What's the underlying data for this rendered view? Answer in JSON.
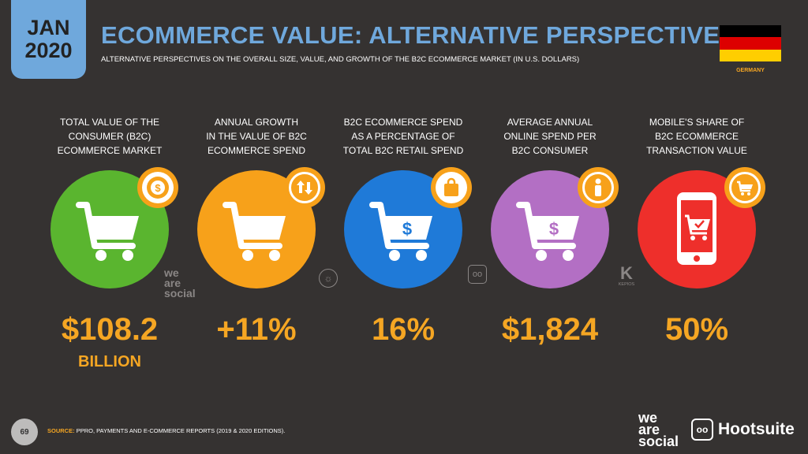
{
  "header": {
    "month": "JAN",
    "year": "2020",
    "title": "ECOMMERCE VALUE: ALTERNATIVE PERSPECTIVES",
    "subtitle": "ALTERNATIVE PERSPECTIVES ON THE OVERALL SIZE, VALUE, AND GROWTH OF THE B2C ECOMMERCE MARKET (IN U.S. DOLLARS)",
    "country": "GERMANY",
    "flag_colors": [
      "#000000",
      "#dd0000",
      "#ffce00"
    ]
  },
  "metrics": [
    {
      "label": "TOTAL VALUE OF THE\nCONSUMER (B2C)\nECOMMERCE MARKET",
      "value": "$108.2",
      "unit": "BILLION",
      "color": "#5ab52f",
      "icon": "dollar-coin-icon"
    },
    {
      "label": "ANNUAL GROWTH\nIN THE VALUE OF B2C\nECOMMERCE SPEND",
      "value": "+11%",
      "unit": "",
      "color": "#f7a11a",
      "icon": "up-down-arrows-icon"
    },
    {
      "label": "B2C ECOMMERCE SPEND\nAS A PERCENTAGE OF\nTOTAL B2C RETAIL SPEND",
      "value": "16%",
      "unit": "",
      "color": "#1f7ad8",
      "icon": "shopping-bag-icon"
    },
    {
      "label": "AVERAGE ANNUAL\nONLINE SPEND PER\nB2C CONSUMER",
      "value": "$1,824",
      "unit": "",
      "color": "#b36fc4",
      "icon": "person-icon"
    },
    {
      "label": "MOBILE'S SHARE OF\nB2C ECOMMERCE\nTRANSACTION VALUE",
      "value": "50%",
      "unit": "",
      "color": "#ee2f2b",
      "icon": "cart-icon"
    }
  ],
  "watermarks": {
    "we_are_social": [
      "we",
      "are",
      "social"
    ],
    "kepios": "KEPIOS"
  },
  "footer": {
    "page_number": "69",
    "source_label": "SOURCE:",
    "source_text": "PPRO, PAYMENTS AND E-COMMERCE REPORTS (2019 & 2020 EDITIONS).",
    "logo_was": [
      "we",
      "are",
      "social"
    ],
    "logo_hootsuite": "Hootsuite"
  }
}
